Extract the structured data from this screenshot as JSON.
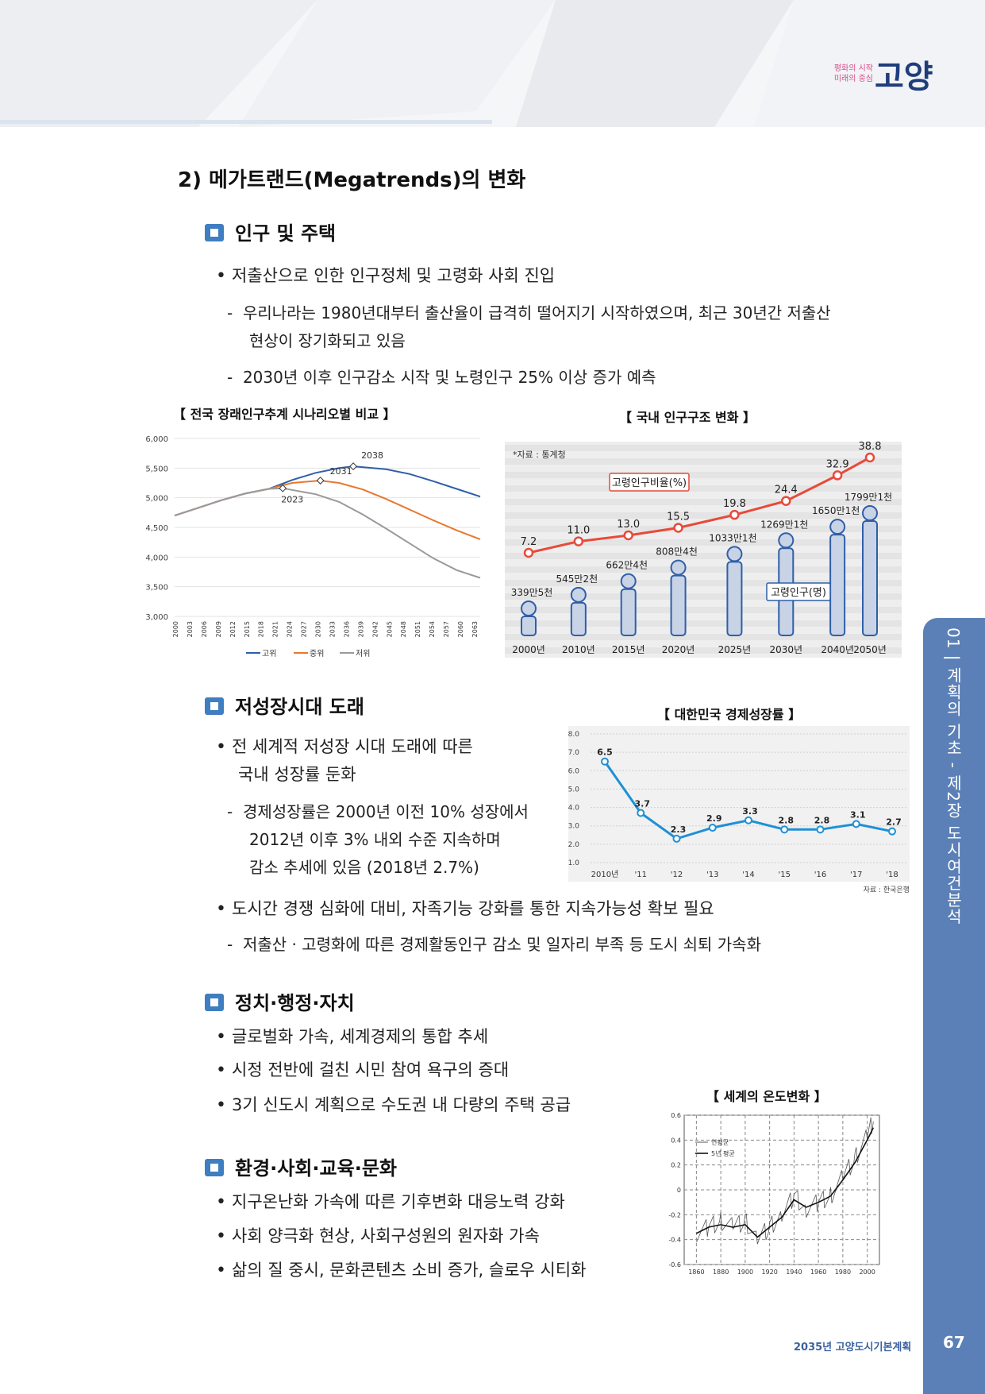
{
  "logo": {
    "line1": "평화의 시작",
    "line2": "미래의 중심",
    "name": "고양"
  },
  "heading": "2) 메가트랜드(Megatrends)의 변화",
  "sections": {
    "s1": {
      "title": "인구 및 주택",
      "bullet1": "저출산으로 인한 인구정체 및 고령화 사회 진입",
      "dash1a": "우리나라는 1980년대부터 출산율이 급격히 떨어지기 시작하였으며, 최근 30년간 저출산",
      "dash1b": "현상이 장기화되고 있음",
      "dash2": "2030년 이후 인구감소 시작 및 노령인구 25% 이상 증가 예측"
    },
    "s2": {
      "title": "저성장시대 도래",
      "bullet1a": "전 세계적 저성장 시대 도래에 따른",
      "bullet1b": "국내 성장률 둔화",
      "dash1a": "경제성장률은 2000년 이전 10% 성장에서",
      "dash1b": "2012년 이후 3% 내외 수준 지속하며",
      "dash1c": "감소 추세에 있음 (2018년 2.7%)",
      "bullet2": "도시간 경쟁 심화에 대비, 자족기능 강화를 통한 지속가능성 확보 필요",
      "dash2": "저출산 · 고령화에 따른 경제활동인구 감소 및 일자리 부족 등 도시 쇠퇴 가속화"
    },
    "s3": {
      "title": "정치·행정·자치",
      "b1": "글로벌화 가속, 세계경제의 통합 추세",
      "b2": "시정 전반에 걸친 시민 참여 욕구의 증대",
      "b3": "3기 신도시 계획으로 수도권 내 다량의 주택 공급"
    },
    "s4": {
      "title": "환경·사회·교육·문화",
      "b1": "지구온난화 가속에 따른 기후변화 대응노력 강화",
      "b2": "사회 양극화 현상, 사회구성원의 원자화 가속",
      "b3": "삶의 질 중시, 문화콘텐츠 소비 증가, 슬로우 시티화"
    }
  },
  "captions": {
    "c1": "【 전국 장래인구추계 시나리오별 비교 】",
    "c2": "【 국내 인구구조 변화 】",
    "c3": "【 대한민국 경제성장률 】",
    "c4": "【 세계의 온도변화 】"
  },
  "sidebar": "01 | 계획의 기초 - 제2장 도시여건분석",
  "footer": "2035년 고양도시기본계획",
  "page": "67",
  "chart_data": [
    {
      "type": "line",
      "title": "전국 장래인구추계 시나리오별 비교",
      "ylim": [
        3000,
        6000
      ],
      "yticks": [
        "6,000",
        "5,500",
        "5,000",
        "4,500",
        "4,000",
        "3,500",
        "3,000"
      ],
      "xticks": [
        "2000",
        "2003",
        "2006",
        "2009",
        "2012",
        "2015",
        "2018",
        "2021",
        "2024",
        "2027",
        "2030",
        "2033",
        "2036",
        "2039",
        "2042",
        "2045",
        "2048",
        "2051",
        "2054",
        "2057",
        "2060",
        "2063"
      ],
      "series": [
        {
          "name": "고위",
          "color": "#2e5fa9",
          "x": [
            2000,
            2005,
            2010,
            2015,
            2020,
            2025,
            2030,
            2035,
            2038,
            2045,
            2050,
            2055,
            2060,
            2065
          ],
          "y": [
            4700,
            4830,
            4960,
            5070,
            5150,
            5300,
            5420,
            5500,
            5530,
            5480,
            5400,
            5280,
            5150,
            5020
          ]
        },
        {
          "name": "중위",
          "color": "#e8772e",
          "x": [
            2000,
            2005,
            2010,
            2015,
            2020,
            2025,
            2031,
            2035,
            2040,
            2045,
            2050,
            2055,
            2060,
            2065
          ],
          "y": [
            4700,
            4830,
            4960,
            5070,
            5150,
            5250,
            5290,
            5250,
            5140,
            4980,
            4800,
            4620,
            4450,
            4300
          ]
        },
        {
          "name": "저위",
          "color": "#9a9a9a",
          "x": [
            2000,
            2005,
            2010,
            2015,
            2020,
            2023,
            2030,
            2035,
            2040,
            2045,
            2050,
            2055,
            2060,
            2065
          ],
          "y": [
            4700,
            4830,
            4960,
            5070,
            5150,
            5160,
            5060,
            4930,
            4720,
            4480,
            4230,
            3980,
            3780,
            3650
          ]
        }
      ],
      "annotations": [
        "2038",
        "2031",
        "2023"
      ],
      "legend": "bottom"
    },
    {
      "type": "bar",
      "title": "국내 인구구조 변화",
      "source": "*자료 : 통계청",
      "categories": [
        "2000년",
        "2010년",
        "2015년",
        "2020년",
        "2025년",
        "2030년",
        "2040년",
        "2050년"
      ],
      "series": [
        {
          "name": "고령인구비율(%)",
          "values": [
            7.2,
            11.0,
            13.0,
            15.5,
            19.8,
            24.4,
            32.9,
            38.8
          ]
        },
        {
          "name": "고령인구(명)",
          "labels": [
            "339만5천",
            "545만2천",
            "662만4천",
            "808만4천",
            "1033만1천",
            "1269만1천",
            "1650만1천",
            "1799만1천"
          ]
        }
      ],
      "value_labels": [
        "7.2",
        "11.0",
        "13.0",
        "15.5",
        "19.8",
        "24.4",
        "32.9",
        "38.8"
      ],
      "legend_ratio": "고령인구비율(%)",
      "legend_count": "고령인구(명)"
    },
    {
      "type": "line",
      "title": "대한민국 경제성장률",
      "source": "자료 : 한국은행",
      "ylim": [
        1.0,
        8.0
      ],
      "yticks": [
        "8.0",
        "7.0",
        "6.0",
        "5.0",
        "4.0",
        "3.0",
        "2.0",
        "1.0"
      ],
      "categories": [
        "2010년",
        "'11",
        "'12",
        "'13",
        "'14",
        "'15",
        "'16",
        "'17",
        "'18"
      ],
      "values": [
        6.5,
        3.7,
        2.3,
        2.9,
        3.3,
        2.8,
        2.8,
        3.1,
        2.7
      ],
      "value_labels": [
        "6.5",
        "3.7",
        "2.3",
        "2.9",
        "3.3",
        "2.8",
        "2.8",
        "3.1",
        "2.7"
      ]
    },
    {
      "type": "line",
      "title": "세계의 온도변화",
      "ylim": [
        -0.6,
        0.6
      ],
      "yticks": [
        "0.6",
        "0.4",
        "0.2",
        "0",
        "-0.2",
        "-0.4",
        "-0.6"
      ],
      "xticks": [
        "1860",
        "1880",
        "1900",
        "1920",
        "1940",
        "1960",
        "1980",
        "2000"
      ],
      "series": [
        {
          "name": "연평균",
          "x": [
            1860,
            1870,
            1880,
            1890,
            1900,
            1910,
            1920,
            1930,
            1940,
            1950,
            1960,
            1970,
            1980,
            1990,
            2000,
            2005
          ],
          "y": [
            -0.35,
            -0.3,
            -0.25,
            -0.3,
            -0.25,
            -0.4,
            -0.3,
            -0.2,
            -0.05,
            -0.15,
            -0.1,
            -0.05,
            0.1,
            0.25,
            0.45,
            0.55
          ]
        },
        {
          "name": "5년 평균",
          "x": [
            1860,
            1870,
            1880,
            1890,
            1900,
            1910,
            1920,
            1930,
            1940,
            1950,
            1960,
            1970,
            1980,
            1990,
            2000,
            2005
          ],
          "y": [
            -0.35,
            -0.3,
            -0.28,
            -0.3,
            -0.28,
            -0.38,
            -0.3,
            -0.22,
            -0.08,
            -0.14,
            -0.1,
            -0.05,
            0.08,
            0.22,
            0.4,
            0.5
          ]
        }
      ],
      "legend": "top-left"
    }
  ]
}
